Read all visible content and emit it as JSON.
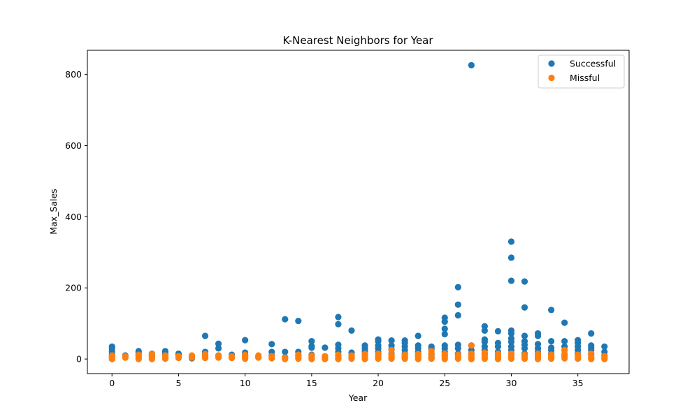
{
  "chart_data": {
    "type": "scatter",
    "title": "K-Nearest Neighbors for Year",
    "xlabel": "Year",
    "ylabel": "Max_Sales",
    "xlim": [
      -1.85,
      38.85
    ],
    "ylim": [
      -41,
      868
    ],
    "xticks": [
      0,
      5,
      10,
      15,
      20,
      25,
      30,
      35
    ],
    "yticks": [
      0,
      200,
      400,
      600,
      800
    ],
    "grid": false,
    "legend_position": "top-right",
    "series": [
      {
        "name": "Successful",
        "color": "#1f77b4",
        "points": [
          [
            0,
            35
          ],
          [
            0,
            30
          ],
          [
            0,
            22
          ],
          [
            0,
            15
          ],
          [
            0,
            8
          ],
          [
            1,
            10
          ],
          [
            2,
            22
          ],
          [
            2,
            18
          ],
          [
            2,
            12
          ],
          [
            3,
            15
          ],
          [
            3,
            8
          ],
          [
            4,
            22
          ],
          [
            4,
            16
          ],
          [
            5,
            15
          ],
          [
            5,
            10
          ],
          [
            6,
            2
          ],
          [
            6,
            8
          ],
          [
            7,
            65
          ],
          [
            7,
            20
          ],
          [
            7,
            12
          ],
          [
            8,
            43
          ],
          [
            8,
            30
          ],
          [
            8,
            10
          ],
          [
            9,
            12
          ],
          [
            10,
            53
          ],
          [
            10,
            18
          ],
          [
            10,
            10
          ],
          [
            11,
            5
          ],
          [
            12,
            42
          ],
          [
            12,
            20
          ],
          [
            12,
            10
          ],
          [
            13,
            112
          ],
          [
            13,
            20
          ],
          [
            13,
            5
          ],
          [
            14,
            107
          ],
          [
            14,
            20
          ],
          [
            14,
            10
          ],
          [
            15,
            50
          ],
          [
            15,
            36
          ],
          [
            15,
            32
          ],
          [
            15,
            12
          ],
          [
            16,
            32
          ],
          [
            16,
            5
          ],
          [
            17,
            118
          ],
          [
            17,
            98
          ],
          [
            17,
            40
          ],
          [
            17,
            30
          ],
          [
            17,
            20
          ],
          [
            17,
            10
          ],
          [
            18,
            80
          ],
          [
            18,
            18
          ],
          [
            18,
            10
          ],
          [
            19,
            38
          ],
          [
            19,
            30
          ],
          [
            19,
            22
          ],
          [
            19,
            15
          ],
          [
            20,
            55
          ],
          [
            20,
            50
          ],
          [
            20,
            38
          ],
          [
            20,
            30
          ],
          [
            20,
            20
          ],
          [
            20,
            10
          ],
          [
            21,
            52
          ],
          [
            21,
            38
          ],
          [
            21,
            28
          ],
          [
            21,
            15
          ],
          [
            22,
            52
          ],
          [
            22,
            45
          ],
          [
            22,
            35
          ],
          [
            22,
            25
          ],
          [
            22,
            15
          ],
          [
            22,
            5
          ],
          [
            23,
            65
          ],
          [
            23,
            38
          ],
          [
            23,
            30
          ],
          [
            23,
            20
          ],
          [
            23,
            10
          ],
          [
            24,
            35
          ],
          [
            24,
            28
          ],
          [
            24,
            15
          ],
          [
            24,
            5
          ],
          [
            25,
            116
          ],
          [
            25,
            105
          ],
          [
            25,
            85
          ],
          [
            25,
            70
          ],
          [
            25,
            38
          ],
          [
            25,
            30
          ],
          [
            25,
            20
          ],
          [
            25,
            10
          ],
          [
            26,
            202
          ],
          [
            26,
            153
          ],
          [
            26,
            123
          ],
          [
            26,
            40
          ],
          [
            26,
            30
          ],
          [
            26,
            15
          ],
          [
            27,
            826
          ],
          [
            27,
            38
          ],
          [
            27,
            25
          ],
          [
            27,
            15
          ],
          [
            28,
            92
          ],
          [
            28,
            80
          ],
          [
            28,
            55
          ],
          [
            28,
            48
          ],
          [
            28,
            35
          ],
          [
            28,
            25
          ],
          [
            28,
            15
          ],
          [
            29,
            78
          ],
          [
            29,
            45
          ],
          [
            29,
            35
          ],
          [
            29,
            20
          ],
          [
            29,
            10
          ],
          [
            30,
            330
          ],
          [
            30,
            285
          ],
          [
            30,
            220
          ],
          [
            30,
            80
          ],
          [
            30,
            72
          ],
          [
            30,
            58
          ],
          [
            30,
            48
          ],
          [
            30,
            35
          ],
          [
            30,
            25
          ],
          [
            30,
            15
          ],
          [
            31,
            218
          ],
          [
            31,
            145
          ],
          [
            31,
            65
          ],
          [
            31,
            50
          ],
          [
            31,
            40
          ],
          [
            31,
            30
          ],
          [
            31,
            15
          ],
          [
            32,
            72
          ],
          [
            32,
            65
          ],
          [
            32,
            42
          ],
          [
            32,
            30
          ],
          [
            32,
            20
          ],
          [
            32,
            10
          ],
          [
            33,
            138
          ],
          [
            33,
            50
          ],
          [
            33,
            32
          ],
          [
            33,
            25
          ],
          [
            33,
            15
          ],
          [
            34,
            102
          ],
          [
            34,
            50
          ],
          [
            34,
            35
          ],
          [
            34,
            25
          ],
          [
            34,
            10
          ],
          [
            35,
            53
          ],
          [
            35,
            45
          ],
          [
            35,
            35
          ],
          [
            35,
            25
          ],
          [
            35,
            15
          ],
          [
            36,
            72
          ],
          [
            36,
            38
          ],
          [
            36,
            32
          ],
          [
            36,
            25
          ],
          [
            36,
            15
          ],
          [
            37,
            35
          ],
          [
            37,
            20
          ],
          [
            37,
            10
          ]
        ]
      },
      {
        "name": "Missful",
        "color": "#ff7f0e",
        "points": [
          [
            0,
            10
          ],
          [
            0,
            6
          ],
          [
            0,
            3
          ],
          [
            0,
            0
          ],
          [
            1,
            8
          ],
          [
            1,
            4
          ],
          [
            2,
            12
          ],
          [
            2,
            8
          ],
          [
            2,
            4
          ],
          [
            2,
            0
          ],
          [
            3,
            14
          ],
          [
            3,
            8
          ],
          [
            3,
            3
          ],
          [
            3,
            0
          ],
          [
            4,
            10
          ],
          [
            4,
            5
          ],
          [
            4,
            1
          ],
          [
            5,
            8
          ],
          [
            5,
            3
          ],
          [
            6,
            10
          ],
          [
            6,
            4
          ],
          [
            7,
            14
          ],
          [
            7,
            8
          ],
          [
            7,
            3
          ],
          [
            8,
            10
          ],
          [
            8,
            4
          ],
          [
            9,
            8
          ],
          [
            9,
            3
          ],
          [
            10,
            12
          ],
          [
            10,
            6
          ],
          [
            10,
            1
          ],
          [
            11,
            10
          ],
          [
            11,
            4
          ],
          [
            12,
            8
          ],
          [
            12,
            2
          ],
          [
            13,
            4
          ],
          [
            13,
            0
          ],
          [
            14,
            12
          ],
          [
            14,
            6
          ],
          [
            14,
            1
          ],
          [
            15,
            10
          ],
          [
            15,
            4
          ],
          [
            15,
            0
          ],
          [
            16,
            8
          ],
          [
            16,
            3
          ],
          [
            16,
            0
          ],
          [
            17,
            12
          ],
          [
            17,
            6
          ],
          [
            17,
            2
          ],
          [
            17,
            0
          ],
          [
            18,
            10
          ],
          [
            18,
            5
          ],
          [
            18,
            1
          ],
          [
            19,
            14
          ],
          [
            19,
            8
          ],
          [
            19,
            3
          ],
          [
            19,
            0
          ],
          [
            20,
            15
          ],
          [
            20,
            10
          ],
          [
            20,
            5
          ],
          [
            20,
            1
          ],
          [
            21,
            25
          ],
          [
            21,
            12
          ],
          [
            21,
            6
          ],
          [
            21,
            1
          ],
          [
            22,
            12
          ],
          [
            22,
            6
          ],
          [
            22,
            1
          ],
          [
            23,
            14
          ],
          [
            23,
            8
          ],
          [
            23,
            3
          ],
          [
            23,
            0
          ],
          [
            24,
            22
          ],
          [
            24,
            12
          ],
          [
            24,
            6
          ],
          [
            24,
            1
          ],
          [
            25,
            15
          ],
          [
            25,
            10
          ],
          [
            25,
            5
          ],
          [
            25,
            0
          ],
          [
            26,
            12
          ],
          [
            26,
            6
          ],
          [
            26,
            1
          ],
          [
            27,
            38
          ],
          [
            27,
            15
          ],
          [
            27,
            8
          ],
          [
            27,
            3
          ],
          [
            27,
            0
          ],
          [
            28,
            18
          ],
          [
            28,
            12
          ],
          [
            28,
            6
          ],
          [
            28,
            1
          ],
          [
            29,
            15
          ],
          [
            29,
            8
          ],
          [
            29,
            3
          ],
          [
            29,
            0
          ],
          [
            30,
            15
          ],
          [
            30,
            10
          ],
          [
            30,
            5
          ],
          [
            30,
            1
          ],
          [
            31,
            12
          ],
          [
            31,
            6
          ],
          [
            31,
            1
          ],
          [
            32,
            15
          ],
          [
            32,
            8
          ],
          [
            32,
            3
          ],
          [
            32,
            0
          ],
          [
            33,
            12
          ],
          [
            33,
            6
          ],
          [
            33,
            1
          ],
          [
            34,
            25
          ],
          [
            34,
            15
          ],
          [
            34,
            8
          ],
          [
            34,
            2
          ],
          [
            35,
            12
          ],
          [
            35,
            6
          ],
          [
            35,
            1
          ],
          [
            36,
            15
          ],
          [
            36,
            8
          ],
          [
            36,
            3
          ],
          [
            36,
            0
          ],
          [
            37,
            8
          ],
          [
            37,
            3
          ],
          [
            37,
            0
          ]
        ]
      }
    ]
  }
}
